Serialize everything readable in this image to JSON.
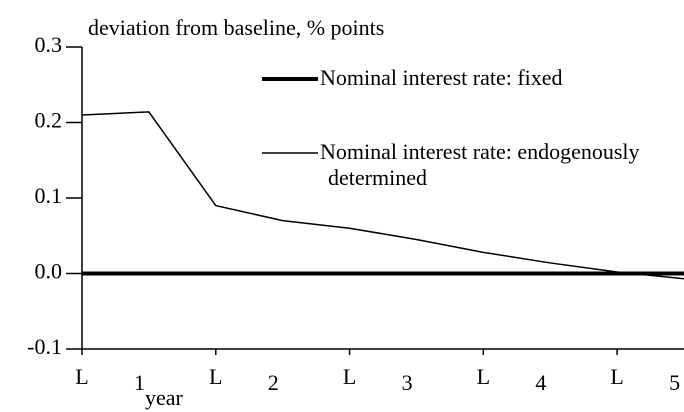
{
  "chart_data": {
    "type": "line",
    "y_label": "deviation from baseline, % points",
    "x_label": "year",
    "x": [
      0,
      2,
      4,
      6,
      8,
      10,
      12,
      14,
      16,
      18
    ],
    "xlim": [
      0,
      18
    ],
    "xticks": [
      {
        "value": 0,
        "label": "L"
      },
      {
        "value": 4,
        "label": "L"
      },
      {
        "value": 8,
        "label": "L"
      },
      {
        "value": 12,
        "label": "L"
      },
      {
        "value": 16,
        "label": "L"
      }
    ],
    "x_period_labels": [
      "1",
      "2",
      "3",
      "4",
      "5"
    ],
    "ylim": [
      -0.1,
      0.3
    ],
    "yticks": [
      -0.1,
      {
        "value": 0,
        "label": "0.0"
      },
      0.1,
      0.2,
      0.3
    ],
    "grid": false,
    "series": [
      {
        "name": "Nominal interest rate: fixed",
        "color": "#000000",
        "line_width": 4,
        "values": [
          0,
          0,
          0,
          0,
          0,
          0,
          0,
          0,
          0,
          0
        ]
      },
      {
        "name": "Nominal interest rate: endogenously determined",
        "color": "#000000",
        "line_width": 1.5,
        "values": [
          0.21,
          0.214,
          0.09,
          0.07,
          0.06,
          0.045,
          0.028,
          0.014,
          0.002,
          -0.007
        ]
      }
    ]
  }
}
